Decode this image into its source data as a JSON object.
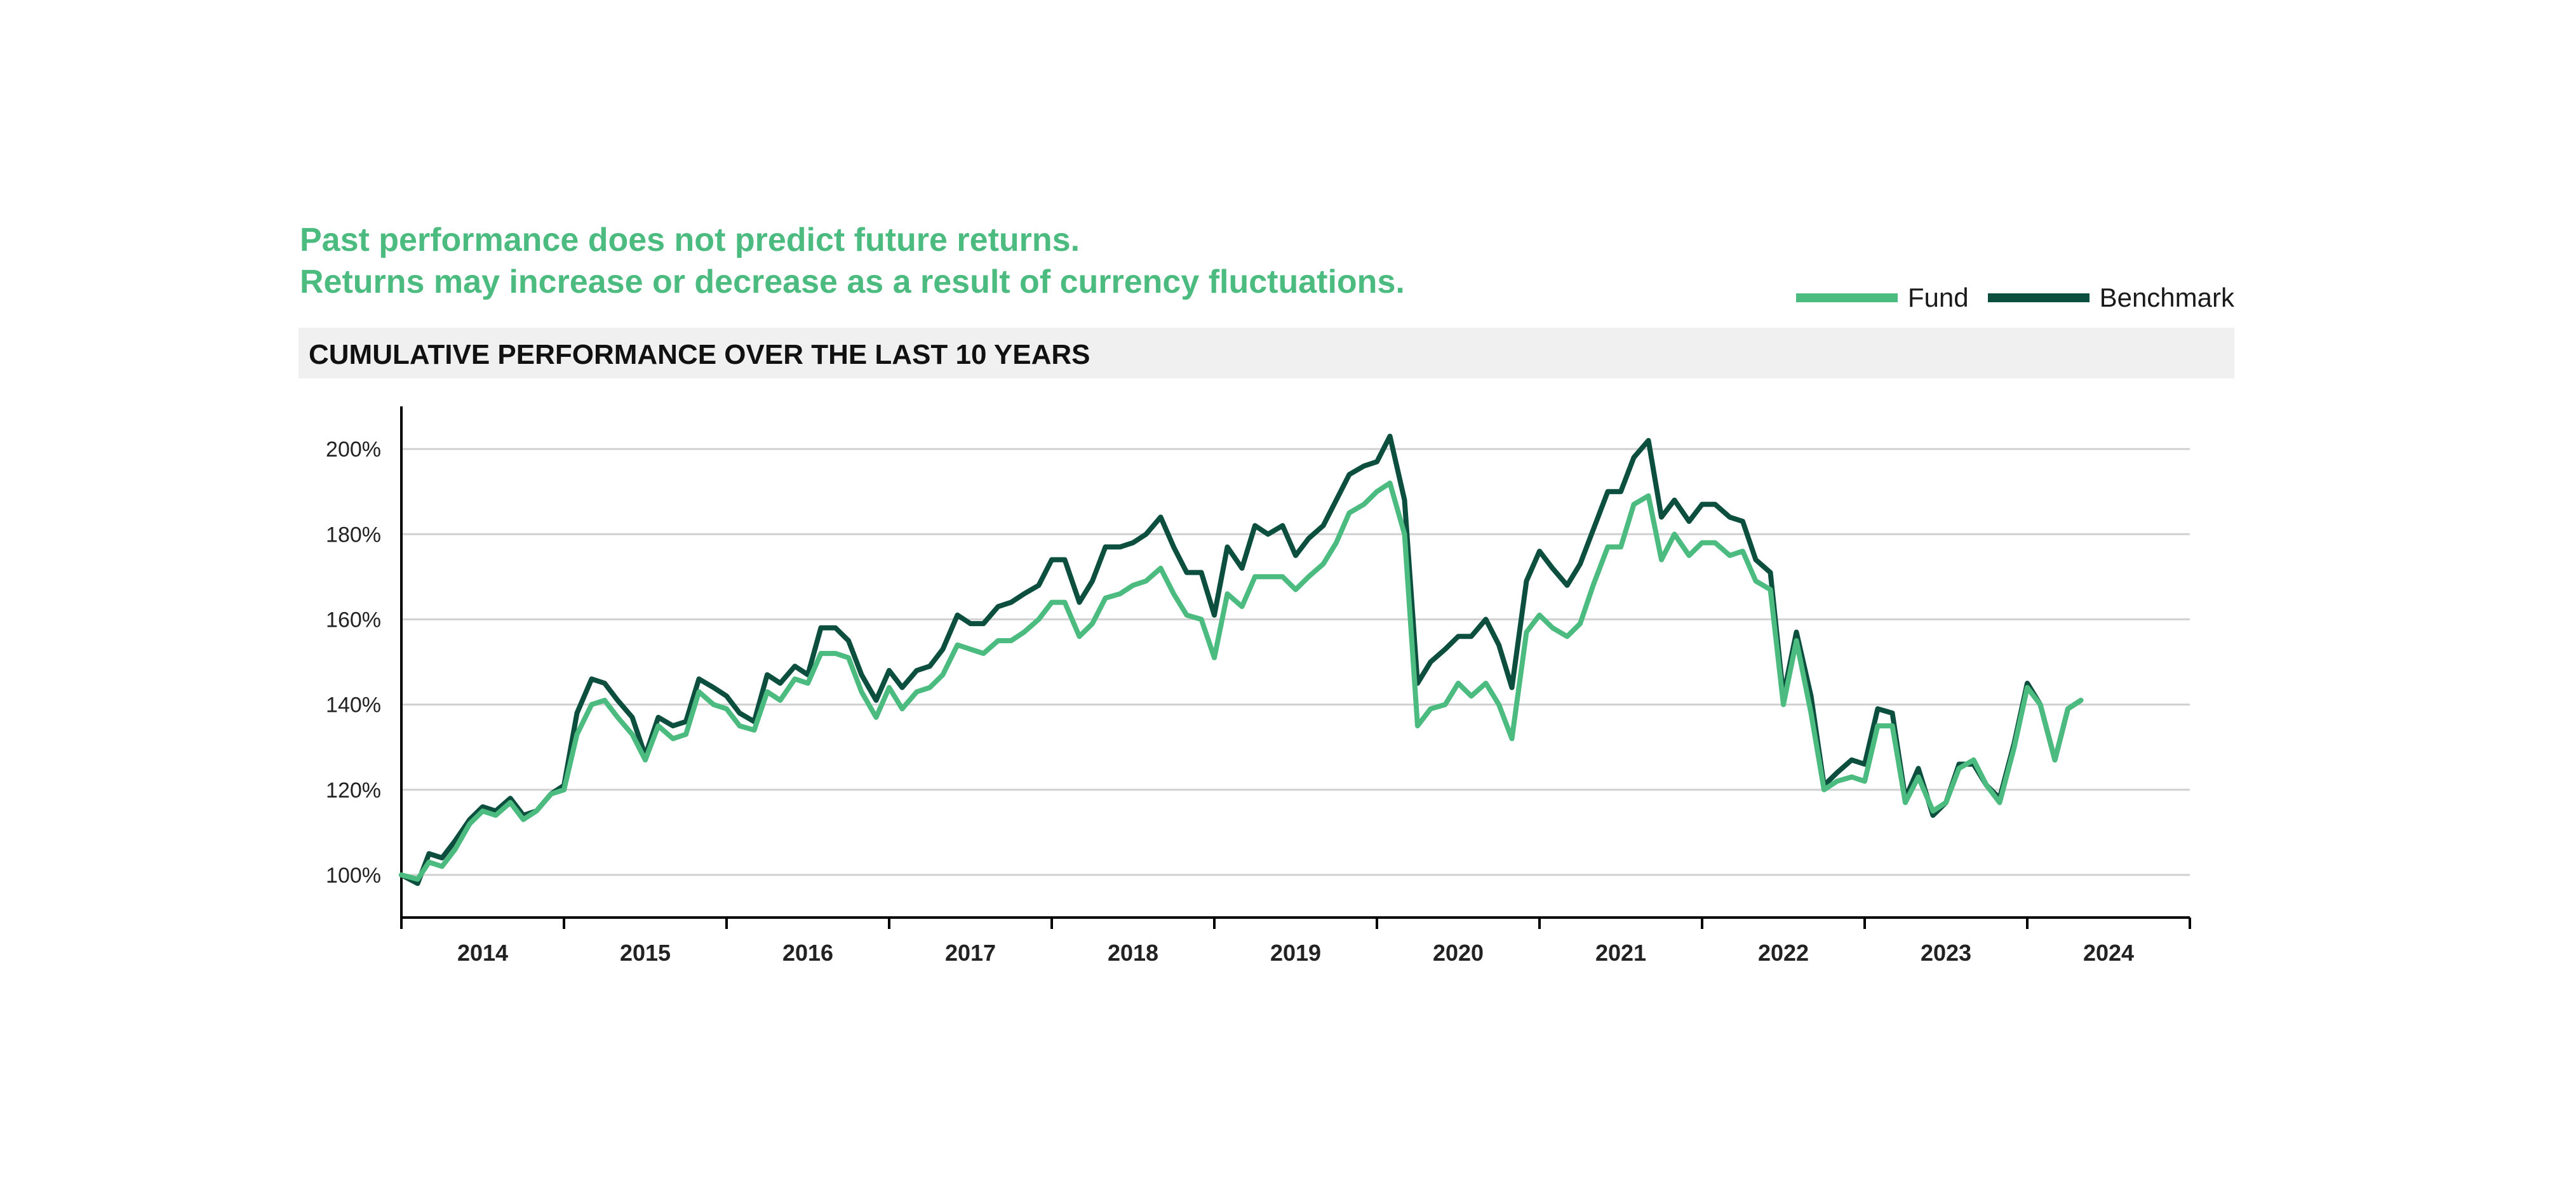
{
  "disclaimer": {
    "line1": "Past performance does not predict future returns.",
    "line2": "Returns may increase or decrease as a result of currency fluctuations."
  },
  "colors": {
    "fund": "#4cbb7f",
    "benchmark": "#0c4f3e",
    "accent_text": "#4cbb7f",
    "grid": "#d0d0d0",
    "axis": "#000000"
  },
  "chart_data": {
    "type": "line",
    "title": "CUMULATIVE PERFORMANCE OVER THE LAST 10 YEARS",
    "xlabel": "",
    "ylabel": "",
    "ylim": [
      90,
      210
    ],
    "yticks": [
      100,
      120,
      140,
      160,
      180,
      200
    ],
    "ytick_labels": [
      "100%",
      "120%",
      "140%",
      "160%",
      "180%",
      "200%"
    ],
    "xlim": [
      2013.5,
      2024.5
    ],
    "xtick_labels": [
      "2014",
      "2015",
      "2016",
      "2017",
      "2018",
      "2019",
      "2020",
      "2021",
      "2022",
      "2023",
      "2024"
    ],
    "legend_position": "top-right",
    "series": [
      {
        "name": "Fund",
        "points": [
          [
            2013.5,
            100
          ],
          [
            2013.6,
            99
          ],
          [
            2013.67,
            103
          ],
          [
            2013.75,
            102
          ],
          [
            2013.83,
            106
          ],
          [
            2013.92,
            112
          ],
          [
            2014.0,
            115
          ],
          [
            2014.08,
            114
          ],
          [
            2014.17,
            117
          ],
          [
            2014.25,
            113
          ],
          [
            2014.33,
            115
          ],
          [
            2014.42,
            119
          ],
          [
            2014.5,
            120
          ],
          [
            2014.58,
            133
          ],
          [
            2014.67,
            140
          ],
          [
            2014.75,
            141
          ],
          [
            2014.83,
            137
          ],
          [
            2014.92,
            133
          ],
          [
            2015.0,
            127
          ],
          [
            2015.08,
            135
          ],
          [
            2015.17,
            132
          ],
          [
            2015.25,
            133
          ],
          [
            2015.33,
            143
          ],
          [
            2015.42,
            140
          ],
          [
            2015.5,
            139
          ],
          [
            2015.58,
            135
          ],
          [
            2015.67,
            134
          ],
          [
            2015.75,
            143
          ],
          [
            2015.83,
            141
          ],
          [
            2015.92,
            146
          ],
          [
            2016.0,
            145
          ],
          [
            2016.08,
            152
          ],
          [
            2016.17,
            152
          ],
          [
            2016.25,
            151
          ],
          [
            2016.33,
            143
          ],
          [
            2016.42,
            137
          ],
          [
            2016.5,
            144
          ],
          [
            2016.58,
            139
          ],
          [
            2016.67,
            143
          ],
          [
            2016.75,
            144
          ],
          [
            2016.83,
            147
          ],
          [
            2016.92,
            154
          ],
          [
            2017.0,
            153
          ],
          [
            2017.08,
            152
          ],
          [
            2017.17,
            155
          ],
          [
            2017.25,
            155
          ],
          [
            2017.33,
            157
          ],
          [
            2017.42,
            160
          ],
          [
            2017.5,
            164
          ],
          [
            2017.58,
            164
          ],
          [
            2017.67,
            156
          ],
          [
            2017.75,
            159
          ],
          [
            2017.83,
            165
          ],
          [
            2017.92,
            166
          ],
          [
            2018.0,
            168
          ],
          [
            2018.08,
            169
          ],
          [
            2018.17,
            172
          ],
          [
            2018.25,
            166
          ],
          [
            2018.33,
            161
          ],
          [
            2018.42,
            160
          ],
          [
            2018.5,
            151
          ],
          [
            2018.58,
            166
          ],
          [
            2018.67,
            163
          ],
          [
            2018.75,
            170
          ],
          [
            2018.83,
            170
          ],
          [
            2018.92,
            170
          ],
          [
            2019.0,
            167
          ],
          [
            2019.08,
            170
          ],
          [
            2019.17,
            173
          ],
          [
            2019.25,
            178
          ],
          [
            2019.33,
            185
          ],
          [
            2019.42,
            187
          ],
          [
            2019.5,
            190
          ],
          [
            2019.58,
            192
          ],
          [
            2019.67,
            180
          ],
          [
            2019.75,
            135
          ],
          [
            2019.83,
            139
          ],
          [
            2019.92,
            140
          ],
          [
            2020.0,
            145
          ],
          [
            2020.08,
            142
          ],
          [
            2020.17,
            145
          ],
          [
            2020.25,
            140
          ],
          [
            2020.33,
            132
          ],
          [
            2020.42,
            157
          ],
          [
            2020.5,
            161
          ],
          [
            2020.58,
            158
          ],
          [
            2020.67,
            156
          ],
          [
            2020.75,
            159
          ],
          [
            2020.83,
            168
          ],
          [
            2020.92,
            177
          ],
          [
            2021.0,
            177
          ],
          [
            2021.08,
            187
          ],
          [
            2021.17,
            189
          ],
          [
            2021.25,
            174
          ],
          [
            2021.33,
            180
          ],
          [
            2021.42,
            175
          ],
          [
            2021.5,
            178
          ],
          [
            2021.58,
            178
          ],
          [
            2021.67,
            175
          ],
          [
            2021.75,
            176
          ],
          [
            2021.83,
            169
          ],
          [
            2021.92,
            167
          ],
          [
            2022.0,
            140
          ],
          [
            2022.08,
            155
          ],
          [
            2022.17,
            138
          ],
          [
            2022.25,
            120
          ],
          [
            2022.33,
            122
          ],
          [
            2022.42,
            123
          ],
          [
            2022.5,
            122
          ],
          [
            2022.58,
            135
          ],
          [
            2022.67,
            135
          ],
          [
            2022.75,
            117
          ],
          [
            2022.83,
            123
          ],
          [
            2022.92,
            115
          ],
          [
            2023.0,
            117
          ],
          [
            2023.08,
            125
          ],
          [
            2023.17,
            127
          ],
          [
            2023.25,
            121
          ],
          [
            2023.33,
            117
          ],
          [
            2023.42,
            130
          ],
          [
            2023.5,
            144
          ],
          [
            2023.58,
            140
          ],
          [
            2023.67,
            127
          ],
          [
            2023.75,
            139
          ],
          [
            2023.83,
            141
          ]
        ]
      },
      {
        "name": "Benchmark",
        "points": [
          [
            2013.5,
            100
          ],
          [
            2013.6,
            98
          ],
          [
            2013.67,
            105
          ],
          [
            2013.75,
            104
          ],
          [
            2013.83,
            108
          ],
          [
            2013.92,
            113
          ],
          [
            2014.0,
            116
          ],
          [
            2014.08,
            115
          ],
          [
            2014.17,
            118
          ],
          [
            2014.25,
            114
          ],
          [
            2014.33,
            115
          ],
          [
            2014.42,
            119
          ],
          [
            2014.5,
            121
          ],
          [
            2014.58,
            138
          ],
          [
            2014.67,
            146
          ],
          [
            2014.75,
            145
          ],
          [
            2014.83,
            141
          ],
          [
            2014.92,
            137
          ],
          [
            2015.0,
            128
          ],
          [
            2015.08,
            137
          ],
          [
            2015.17,
            135
          ],
          [
            2015.25,
            136
          ],
          [
            2015.33,
            146
          ],
          [
            2015.42,
            144
          ],
          [
            2015.5,
            142
          ],
          [
            2015.58,
            138
          ],
          [
            2015.67,
            136
          ],
          [
            2015.75,
            147
          ],
          [
            2015.83,
            145
          ],
          [
            2015.92,
            149
          ],
          [
            2016.0,
            147
          ],
          [
            2016.08,
            158
          ],
          [
            2016.17,
            158
          ],
          [
            2016.25,
            155
          ],
          [
            2016.33,
            147
          ],
          [
            2016.42,
            141
          ],
          [
            2016.5,
            148
          ],
          [
            2016.58,
            144
          ],
          [
            2016.67,
            148
          ],
          [
            2016.75,
            149
          ],
          [
            2016.83,
            153
          ],
          [
            2016.92,
            161
          ],
          [
            2017.0,
            159
          ],
          [
            2017.08,
            159
          ],
          [
            2017.17,
            163
          ],
          [
            2017.25,
            164
          ],
          [
            2017.33,
            166
          ],
          [
            2017.42,
            168
          ],
          [
            2017.5,
            174
          ],
          [
            2017.58,
            174
          ],
          [
            2017.67,
            164
          ],
          [
            2017.75,
            169
          ],
          [
            2017.83,
            177
          ],
          [
            2017.92,
            177
          ],
          [
            2018.0,
            178
          ],
          [
            2018.08,
            180
          ],
          [
            2018.17,
            184
          ],
          [
            2018.25,
            177
          ],
          [
            2018.33,
            171
          ],
          [
            2018.42,
            171
          ],
          [
            2018.5,
            161
          ],
          [
            2018.58,
            177
          ],
          [
            2018.67,
            172
          ],
          [
            2018.75,
            182
          ],
          [
            2018.83,
            180
          ],
          [
            2018.92,
            182
          ],
          [
            2019.0,
            175
          ],
          [
            2019.08,
            179
          ],
          [
            2019.17,
            182
          ],
          [
            2019.25,
            188
          ],
          [
            2019.33,
            194
          ],
          [
            2019.42,
            196
          ],
          [
            2019.5,
            197
          ],
          [
            2019.58,
            203
          ],
          [
            2019.67,
            188
          ],
          [
            2019.75,
            145
          ],
          [
            2019.83,
            150
          ],
          [
            2019.92,
            153
          ],
          [
            2020.0,
            156
          ],
          [
            2020.08,
            156
          ],
          [
            2020.17,
            160
          ],
          [
            2020.25,
            154
          ],
          [
            2020.33,
            144
          ],
          [
            2020.42,
            169
          ],
          [
            2020.5,
            176
          ],
          [
            2020.58,
            172
          ],
          [
            2020.67,
            168
          ],
          [
            2020.75,
            173
          ],
          [
            2020.83,
            181
          ],
          [
            2020.92,
            190
          ],
          [
            2021.0,
            190
          ],
          [
            2021.08,
            198
          ],
          [
            2021.17,
            202
          ],
          [
            2021.25,
            184
          ],
          [
            2021.33,
            188
          ],
          [
            2021.42,
            183
          ],
          [
            2021.5,
            187
          ],
          [
            2021.58,
            187
          ],
          [
            2021.67,
            184
          ],
          [
            2021.75,
            183
          ],
          [
            2021.83,
            174
          ],
          [
            2021.92,
            171
          ],
          [
            2022.0,
            142
          ],
          [
            2022.08,
            157
          ],
          [
            2022.17,
            142
          ],
          [
            2022.25,
            121
          ],
          [
            2022.33,
            124
          ],
          [
            2022.42,
            127
          ],
          [
            2022.5,
            126
          ],
          [
            2022.58,
            139
          ],
          [
            2022.67,
            138
          ],
          [
            2022.75,
            118
          ],
          [
            2022.83,
            125
          ],
          [
            2022.92,
            114
          ],
          [
            2023.0,
            117
          ],
          [
            2023.08,
            126
          ],
          [
            2023.17,
            126
          ],
          [
            2023.25,
            121
          ],
          [
            2023.33,
            118
          ],
          [
            2023.42,
            131
          ],
          [
            2023.5,
            145
          ],
          [
            2023.58,
            140
          ],
          [
            2023.67,
            127
          ],
          [
            2023.75,
            139
          ],
          [
            2023.83,
            141
          ]
        ]
      }
    ]
  }
}
